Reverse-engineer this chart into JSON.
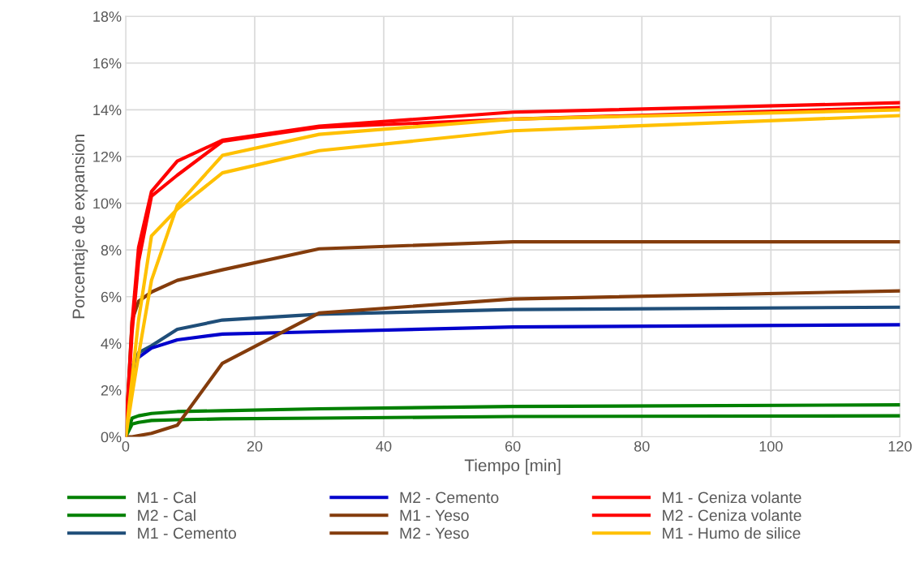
{
  "chart_data": {
    "type": "line",
    "xlabel": "Tiempo [min]",
    "ylabel": "Porcentaje de expansion",
    "x": [
      0,
      1,
      2,
      4,
      8,
      15,
      30,
      60,
      120
    ],
    "series": [
      {
        "name": "M1 - Cal",
        "color": "#008000",
        "values": [
          0,
          0.8,
          0.9,
          1.0,
          1.08,
          1.12,
          1.2,
          1.3,
          1.37
        ]
      },
      {
        "name": "M2 - Cal",
        "color": "#008000",
        "values": [
          0,
          0.55,
          0.62,
          0.7,
          0.73,
          0.77,
          0.8,
          0.87,
          0.9
        ]
      },
      {
        "name": "M1 - Cemento",
        "color": "#1f4e79",
        "values": [
          0,
          3.0,
          3.6,
          3.9,
          4.6,
          5.0,
          5.25,
          5.45,
          5.55
        ]
      },
      {
        "name": "M2 - Cemento",
        "color": "#0000cc",
        "values": [
          0,
          2.8,
          3.4,
          3.8,
          4.15,
          4.4,
          4.5,
          4.7,
          4.8
        ]
      },
      {
        "name": "M1 - Yeso",
        "color": "#843c0c",
        "values": [
          0,
          5.0,
          5.8,
          6.2,
          6.7,
          7.15,
          8.05,
          8.35,
          8.35
        ]
      },
      {
        "name": "M2 - Yeso",
        "color": "#843c0c",
        "values": [
          0,
          0,
          0.05,
          0.15,
          0.5,
          3.15,
          5.3,
          5.9,
          6.25
        ]
      },
      {
        "name": "M1 - Ceniza volante",
        "color": "#ff0000",
        "values": [
          0,
          4.9,
          8.1,
          10.5,
          11.8,
          12.7,
          13.3,
          13.9,
          14.3
        ]
      },
      {
        "name": "M2 - Ceniza volante",
        "color": "#ff0000",
        "values": [
          0,
          4.5,
          7.5,
          10.3,
          11.2,
          12.65,
          13.25,
          13.6,
          14.1
        ]
      },
      {
        "name": "M1 - Humo de silice",
        "color": "#ffc000",
        "values": [
          0,
          1.8,
          3.5,
          6.7,
          9.9,
          12.05,
          12.95,
          13.6,
          14.0
        ]
      },
      {
        "color": "#ffc000",
        "values": [
          0,
          2.5,
          5.0,
          8.6,
          9.75,
          11.3,
          12.25,
          13.1,
          13.75
        ]
      }
    ],
    "xlim": [
      0,
      120
    ],
    "xticks": [
      0,
      20,
      40,
      60,
      80,
      100,
      120
    ],
    "ylim": [
      0,
      18
    ],
    "yticks": [
      {
        "value": 0,
        "label": "0%"
      },
      {
        "value": 2,
        "label": "2%"
      },
      {
        "value": 4,
        "label": "4%"
      },
      {
        "value": 6,
        "label": "6%"
      },
      {
        "value": 8,
        "label": "8%"
      },
      {
        "value": 10,
        "label": "10%"
      },
      {
        "value": 12,
        "label": "12%"
      },
      {
        "value": 14,
        "label": "14%"
      },
      {
        "value": 16,
        "label": "16%"
      },
      {
        "value": 18,
        "label": "18%"
      }
    ],
    "grid": true,
    "legend": "bottom",
    "marker": "none",
    "line_style": "solid"
  }
}
